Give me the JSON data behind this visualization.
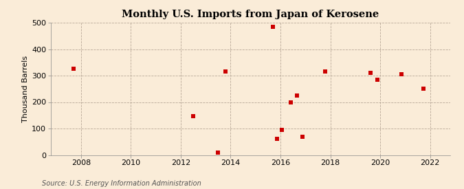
{
  "title": "Monthly U.S. Imports from Japan of Kerosene",
  "ylabel": "Thousand Barrels",
  "source": "Source: U.S. Energy Information Administration",
  "background_color": "#faecd8",
  "marker_color": "#cc0000",
  "xlim": [
    2006.8,
    2022.8
  ],
  "ylim": [
    0,
    500
  ],
  "xticks": [
    2008,
    2010,
    2012,
    2014,
    2016,
    2018,
    2020,
    2022
  ],
  "yticks": [
    0,
    100,
    200,
    300,
    400,
    500
  ],
  "data_x": [
    2007.7,
    2012.5,
    2013.5,
    2013.8,
    2015.7,
    2015.87,
    2016.05,
    2016.42,
    2016.65,
    2016.88,
    2017.8,
    2019.6,
    2019.88,
    2020.85,
    2021.72
  ],
  "data_y": [
    325,
    148,
    10,
    315,
    485,
    60,
    95,
    200,
    225,
    70,
    315,
    310,
    285,
    305,
    250
  ]
}
